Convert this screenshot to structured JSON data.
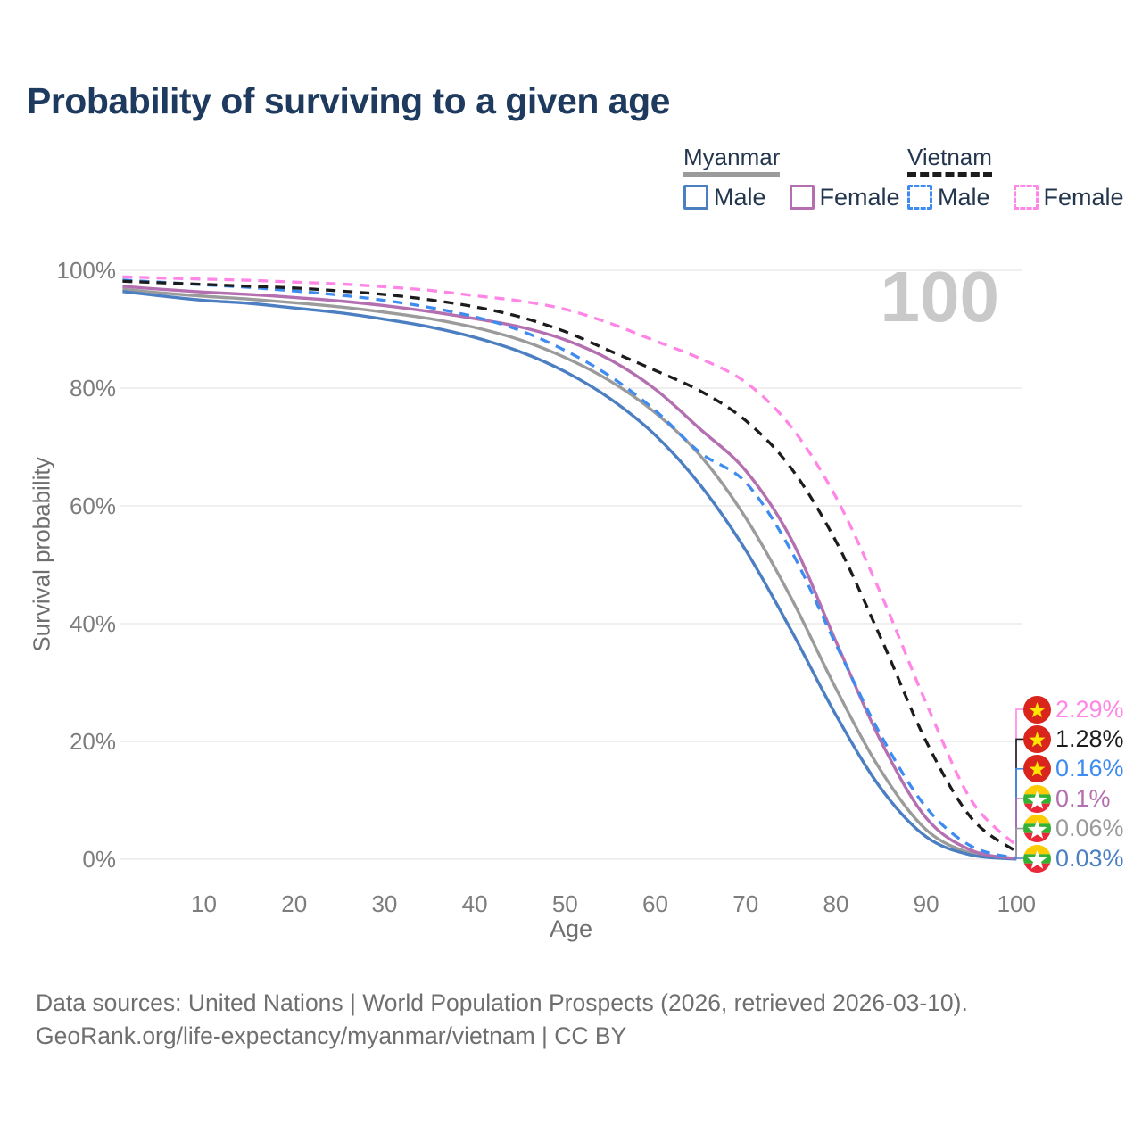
{
  "title": "Probability of surviving to a given age",
  "legend": {
    "groups": [
      {
        "label": "Myanmar",
        "line_style": "solid",
        "items": [
          {
            "label": "Male"
          },
          {
            "label": "Female"
          }
        ]
      },
      {
        "label": "Vietnam",
        "line_style": "dashed",
        "items": [
          {
            "label": "Male"
          },
          {
            "label": "Female"
          }
        ]
      }
    ]
  },
  "chart_data": {
    "type": "line",
    "title": "Probability of surviving to a given age",
    "xlabel": "Age",
    "ylabel": "Survival probability",
    "age_watermark": "100",
    "x_ticks": [
      10,
      20,
      30,
      40,
      50,
      60,
      70,
      80,
      90,
      100
    ],
    "y_ticks": [
      {
        "value": 0,
        "label": "0%"
      },
      {
        "value": 20,
        "label": "20%"
      },
      {
        "value": 40,
        "label": "40%"
      },
      {
        "value": 60,
        "label": "60%"
      },
      {
        "value": 80,
        "label": "80%"
      },
      {
        "value": 100,
        "label": "100%"
      }
    ],
    "x_range": [
      1,
      100
    ],
    "y_range": [
      0,
      100
    ],
    "grid": "horizontal",
    "ages": [
      1,
      5,
      10,
      15,
      20,
      25,
      30,
      35,
      40,
      45,
      50,
      55,
      60,
      65,
      70,
      75,
      80,
      85,
      90,
      95,
      100
    ],
    "series": [
      {
        "id": "myanmar-male",
        "name": "Myanmar Male",
        "color": "#4c7ec2",
        "dash": false,
        "values": [
          96.4,
          95.7,
          94.9,
          94.4,
          93.6,
          92.8,
          91.7,
          90.4,
          88.6,
          86.2,
          82.8,
          78.2,
          72.0,
          63.5,
          52.5,
          39.0,
          24.5,
          12.0,
          3.8,
          0.7,
          0.03
        ]
      },
      {
        "id": "myanmar-female",
        "name": "Myanmar Female",
        "color": "#b46fb0",
        "dash": false,
        "values": [
          97.3,
          96.8,
          96.3,
          95.9,
          95.4,
          94.8,
          94.0,
          93.0,
          91.8,
          90.4,
          88.2,
          84.8,
          79.8,
          73.0,
          66.0,
          54.5,
          37.0,
          20.0,
          7.0,
          1.5,
          0.1
        ]
      },
      {
        "id": "myanmar-all",
        "name": "Myanmar",
        "color": "#9b9b9b",
        "dash": false,
        "values": [
          96.8,
          96.2,
          95.6,
          95.1,
          94.5,
          93.8,
          92.9,
          91.8,
          90.3,
          88.2,
          85.2,
          81.2,
          75.8,
          68.5,
          58.0,
          44.5,
          29.0,
          15.0,
          5.0,
          1.0,
          0.06
        ]
      },
      {
        "id": "vietnam-male",
        "name": "Vietnam Male",
        "color": "#3f8cf0",
        "dash": true,
        "values": [
          98.35,
          98.0,
          97.55,
          97.1,
          96.5,
          95.8,
          94.9,
          93.7,
          92.1,
          89.8,
          86.4,
          82.0,
          76.2,
          69.0,
          64.0,
          52.5,
          36.5,
          21.0,
          8.8,
          2.2,
          0.16
        ]
      },
      {
        "id": "vietnam-female",
        "name": "Vietnam Female",
        "color": "#ff85e6",
        "dash": true,
        "values": [
          98.9,
          98.7,
          98.5,
          98.3,
          98.0,
          97.7,
          97.2,
          96.6,
          95.7,
          94.8,
          93.4,
          91.0,
          88.0,
          85.0,
          81.0,
          73.5,
          61.5,
          45.0,
          26.5,
          10.0,
          2.29
        ]
      },
      {
        "id": "vietnam-all",
        "name": "Vietnam",
        "color": "#1c1c1c",
        "dash": true,
        "values": [
          98.15,
          97.9,
          97.6,
          97.3,
          97.0,
          96.5,
          95.9,
          95.0,
          93.8,
          92.1,
          89.6,
          86.3,
          83.0,
          79.5,
          74.5,
          66.5,
          54.0,
          37.5,
          20.0,
          7.0,
          1.28
        ]
      }
    ],
    "end_labels": [
      {
        "text": "2.29%",
        "series": "vietnam-female",
        "flag": "vietnam",
        "color": "#ff85e6"
      },
      {
        "text": "1.28%",
        "series": "vietnam-all",
        "flag": "vietnam",
        "color": "#1c1c1c"
      },
      {
        "text": "0.16%",
        "series": "vietnam-male",
        "flag": "vietnam",
        "color": "#3f8cf0"
      },
      {
        "text": "0.1%",
        "series": "myanmar-female",
        "flag": "myanmar",
        "color": "#b46fb0"
      },
      {
        "text": "0.06%",
        "series": "myanmar-all",
        "flag": "myanmar",
        "color": "#9b9b9b"
      },
      {
        "text": "0.03%",
        "series": "myanmar-male",
        "flag": "myanmar",
        "color": "#4c7ec2"
      }
    ],
    "legend_position": "top-right"
  },
  "colors": {
    "title_text": "#1e3a5f",
    "legend_text": "#24364e",
    "axis_text": "#7d7d7d",
    "axis_title_text": "#6f6f6f",
    "grid": "#eaeaea",
    "watermark": "#c9c9c9",
    "footer_text": "#6f6f6f",
    "vietnam_flag_red": "#da251d",
    "vietnam_flag_star": "#ffe600",
    "myanmar_flag_yellow": "#fecb00",
    "myanmar_flag_green": "#34b233",
    "myanmar_flag_red": "#ea2839",
    "myanmar_flag_star": "#ffffff"
  },
  "footer": {
    "line1": "Data sources: United Nations | World Population Prospects (2026, retrieved 2026-03-10).",
    "line2": "GeoRank.org/life-expectancy/myanmar/vietnam | CC BY"
  }
}
